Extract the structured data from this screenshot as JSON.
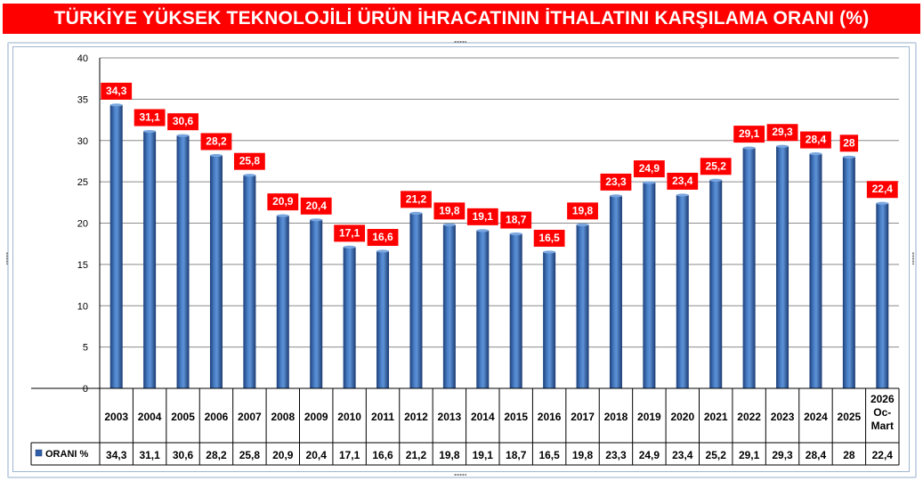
{
  "title": "TÜRKİYE YÜKSEK TEKNOLOJİLİ ÜRÜN İHRACATININ İTHALATINI KARŞILAMA ORANI (%)",
  "colors": {
    "title_bg": "#ff0000",
    "bar": "#2f5fa8",
    "label_bg": "#ff0000",
    "label_text": "#ffffff",
    "grid": "#8c8c8c"
  },
  "chart_data": {
    "type": "bar",
    "title": "TÜRKİYE YÜKSEK TEKNOLOJİLİ ÜRÜN İHRACATININ İTHALATINI KARŞILAMA ORANI (%)",
    "categories": [
      "2003",
      "2004",
      "2005",
      "2006",
      "2007",
      "2008",
      "2009",
      "2010",
      "2011",
      "2012",
      "2013",
      "2014",
      "2015",
      "2016",
      "2017",
      "2018",
      "2019",
      "2020",
      "2021",
      "2022",
      "2023",
      "2024",
      "2025",
      "2026 Oc-Mart"
    ],
    "category_lines": [
      [
        "2003"
      ],
      [
        "2004"
      ],
      [
        "2005"
      ],
      [
        "2006"
      ],
      [
        "2007"
      ],
      [
        "2008"
      ],
      [
        "2009"
      ],
      [
        "2010"
      ],
      [
        "2011"
      ],
      [
        "2012"
      ],
      [
        "2013"
      ],
      [
        "2014"
      ],
      [
        "2015"
      ],
      [
        "2016"
      ],
      [
        "2017"
      ],
      [
        "2018"
      ],
      [
        "2019"
      ],
      [
        "2020"
      ],
      [
        "2021"
      ],
      [
        "2022"
      ],
      [
        "2023"
      ],
      [
        "2024"
      ],
      [
        "2025"
      ],
      [
        "2026",
        "Oc-",
        "Mart"
      ]
    ],
    "series": [
      {
        "name": "ORANI %",
        "values": [
          34.3,
          31.1,
          30.6,
          28.2,
          25.8,
          20.9,
          20.4,
          17.1,
          16.6,
          21.2,
          19.8,
          19.1,
          18.7,
          16.5,
          19.8,
          23.3,
          24.9,
          23.4,
          25.2,
          29.1,
          29.3,
          28.4,
          28,
          22.4
        ],
        "labels": [
          "34,3",
          "31,1",
          "30,6",
          "28,2",
          "25,8",
          "20,9",
          "20,4",
          "17,1",
          "16,6",
          "21,2",
          "19,8",
          "19,1",
          "18,7",
          "16,5",
          "19,8",
          "23,3",
          "24,9",
          "23,4",
          "25,2",
          "29,1",
          "29,3",
          "28,4",
          "28",
          "22,4"
        ]
      }
    ],
    "yticks": [
      "0",
      "5",
      "10",
      "15",
      "20",
      "25",
      "30",
      "35",
      "40"
    ],
    "ylim": [
      0,
      40
    ],
    "xlabel": "",
    "ylabel": "",
    "grid": true,
    "data_table": true,
    "legend": "data-table"
  }
}
